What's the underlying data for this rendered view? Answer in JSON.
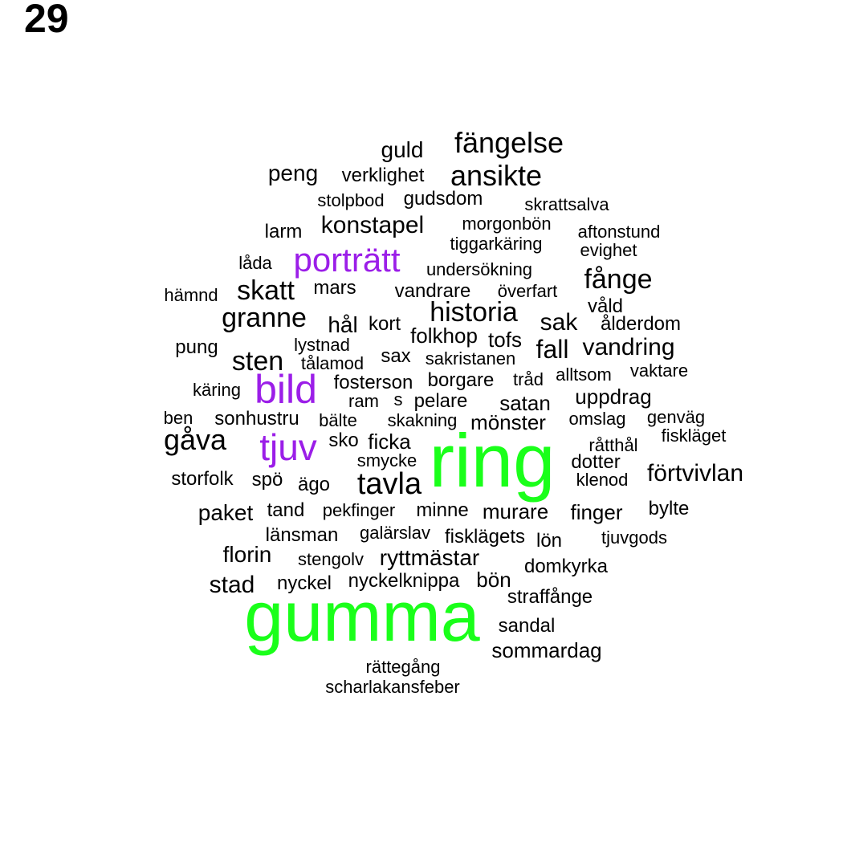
{
  "page_number": "29",
  "colors": {
    "text": "#000000",
    "purple": "#9b1ee8",
    "green": "#1aff1a"
  },
  "words": [
    {
      "text": "ring",
      "tone": "green"
    },
    {
      "text": "gumma",
      "tone": "green"
    },
    {
      "text": "bild",
      "tone": "purple"
    },
    {
      "text": "porträtt",
      "tone": "purple"
    },
    {
      "text": "tjuv",
      "tone": "purple"
    },
    {
      "text": "fängelse",
      "tone": "text"
    },
    {
      "text": "guld",
      "tone": "text"
    },
    {
      "text": "peng",
      "tone": "text"
    },
    {
      "text": "verklighet",
      "tone": "text"
    },
    {
      "text": "ansikte",
      "tone": "text"
    },
    {
      "text": "stolpbod",
      "tone": "text"
    },
    {
      "text": "gudsdom",
      "tone": "text"
    },
    {
      "text": "skrattsalva",
      "tone": "text"
    },
    {
      "text": "larm",
      "tone": "text"
    },
    {
      "text": "konstapel",
      "tone": "text"
    },
    {
      "text": "morgonbön",
      "tone": "text"
    },
    {
      "text": "aftonstund",
      "tone": "text"
    },
    {
      "text": "tiggarkäring",
      "tone": "text"
    },
    {
      "text": "evighet",
      "tone": "text"
    },
    {
      "text": "låda",
      "tone": "text"
    },
    {
      "text": "undersökning",
      "tone": "text"
    },
    {
      "text": "fånge",
      "tone": "text"
    },
    {
      "text": "hämnd",
      "tone": "text"
    },
    {
      "text": "skatt",
      "tone": "text"
    },
    {
      "text": "mars",
      "tone": "text"
    },
    {
      "text": "vandrare",
      "tone": "text"
    },
    {
      "text": "överfart",
      "tone": "text"
    },
    {
      "text": "våld",
      "tone": "text"
    },
    {
      "text": "granne",
      "tone": "text"
    },
    {
      "text": "historia",
      "tone": "text"
    },
    {
      "text": "hål",
      "tone": "text"
    },
    {
      "text": "kort",
      "tone": "text"
    },
    {
      "text": "sak",
      "tone": "text"
    },
    {
      "text": "ålderdom",
      "tone": "text"
    },
    {
      "text": "folkhop",
      "tone": "text"
    },
    {
      "text": "tofs",
      "tone": "text"
    },
    {
      "text": "pung",
      "tone": "text"
    },
    {
      "text": "lystnad",
      "tone": "text"
    },
    {
      "text": "fall",
      "tone": "text"
    },
    {
      "text": "vandring",
      "tone": "text"
    },
    {
      "text": "sten",
      "tone": "text"
    },
    {
      "text": "tålamod",
      "tone": "text"
    },
    {
      "text": "sax",
      "tone": "text"
    },
    {
      "text": "sakristanen",
      "tone": "text"
    },
    {
      "text": "tråd",
      "tone": "text"
    },
    {
      "text": "alltsom",
      "tone": "text"
    },
    {
      "text": "vaktare",
      "tone": "text"
    },
    {
      "text": "käring",
      "tone": "text"
    },
    {
      "text": "fosterson",
      "tone": "text"
    },
    {
      "text": "borgare",
      "tone": "text"
    },
    {
      "text": "uppdrag",
      "tone": "text"
    },
    {
      "text": "ram",
      "tone": "text"
    },
    {
      "text": "s",
      "tone": "text"
    },
    {
      "text": "pelare",
      "tone": "text"
    },
    {
      "text": "satan",
      "tone": "text"
    },
    {
      "text": "ben",
      "tone": "text"
    },
    {
      "text": "sonhustru",
      "tone": "text"
    },
    {
      "text": "bälte",
      "tone": "text"
    },
    {
      "text": "skakning",
      "tone": "text"
    },
    {
      "text": "mönster",
      "tone": "text"
    },
    {
      "text": "omslag",
      "tone": "text"
    },
    {
      "text": "genväg",
      "tone": "text"
    },
    {
      "text": "gåva",
      "tone": "text"
    },
    {
      "text": "sko",
      "tone": "text"
    },
    {
      "text": "ficka",
      "tone": "text"
    },
    {
      "text": "fiskläget",
      "tone": "text"
    },
    {
      "text": "råtthål",
      "tone": "text"
    },
    {
      "text": "smycke",
      "tone": "text"
    },
    {
      "text": "dotter",
      "tone": "text"
    },
    {
      "text": "storfolk",
      "tone": "text"
    },
    {
      "text": "spö",
      "tone": "text"
    },
    {
      "text": "ägo",
      "tone": "text"
    },
    {
      "text": "tavla",
      "tone": "text"
    },
    {
      "text": "förtvivlan",
      "tone": "text"
    },
    {
      "text": "klenod",
      "tone": "text"
    },
    {
      "text": "paket",
      "tone": "text"
    },
    {
      "text": "tand",
      "tone": "text"
    },
    {
      "text": "pekfinger",
      "tone": "text"
    },
    {
      "text": "minne",
      "tone": "text"
    },
    {
      "text": "murare",
      "tone": "text"
    },
    {
      "text": "finger",
      "tone": "text"
    },
    {
      "text": "bylte",
      "tone": "text"
    },
    {
      "text": "länsman",
      "tone": "text"
    },
    {
      "text": "galärslav",
      "tone": "text"
    },
    {
      "text": "fisklägets",
      "tone": "text"
    },
    {
      "text": "lön",
      "tone": "text"
    },
    {
      "text": "tjuvgods",
      "tone": "text"
    },
    {
      "text": "florin",
      "tone": "text"
    },
    {
      "text": "stengolv",
      "tone": "text"
    },
    {
      "text": "ryttmästar",
      "tone": "text"
    },
    {
      "text": "domkyrka",
      "tone": "text"
    },
    {
      "text": "stad",
      "tone": "text"
    },
    {
      "text": "nyckel",
      "tone": "text"
    },
    {
      "text": "nyckelknippa",
      "tone": "text"
    },
    {
      "text": "bön",
      "tone": "text"
    },
    {
      "text": "straffånge",
      "tone": "text"
    },
    {
      "text": "sandal",
      "tone": "text"
    },
    {
      "text": "sommardag",
      "tone": "text"
    },
    {
      "text": "rättegång",
      "tone": "text"
    },
    {
      "text": "scharlakansfeber",
      "tone": "text"
    }
  ]
}
